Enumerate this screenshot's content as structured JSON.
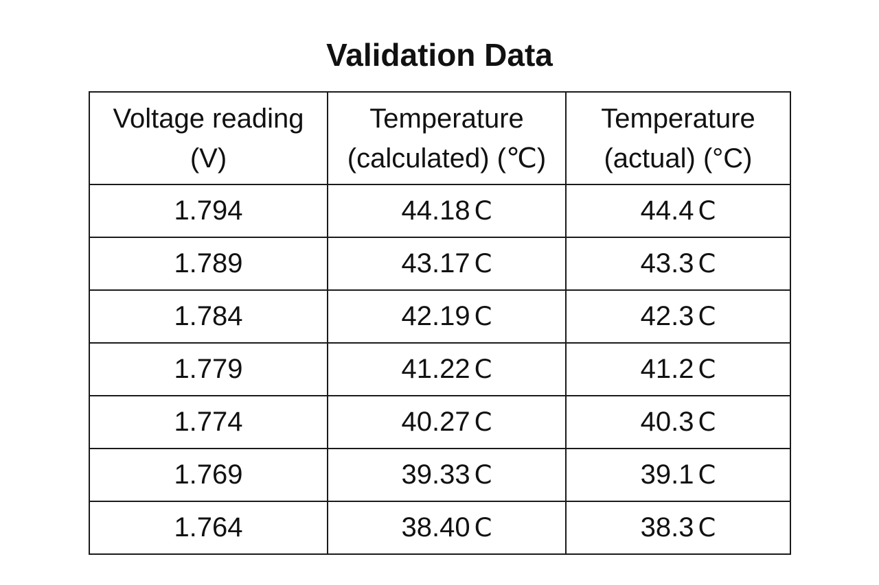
{
  "title": "Validation Data",
  "table": {
    "headers": [
      {
        "line1": "Voltage reading",
        "line2": "(V)"
      },
      {
        "line1": "Temperature",
        "line2": "(calculated) (℃)"
      },
      {
        "line1": "Temperature",
        "line2": "(actual) (°C)"
      }
    ],
    "rows": [
      {
        "voltage": "1.794",
        "calc": "44.18",
        "calc_unit": "C",
        "actual": "44.4",
        "actual_unit": "C"
      },
      {
        "voltage": "1.789",
        "calc": "43.17",
        "calc_unit": "C",
        "actual": "43.3",
        "actual_unit": "C"
      },
      {
        "voltage": "1.784",
        "calc": "42.19",
        "calc_unit": "C",
        "actual": "42.3",
        "actual_unit": "C"
      },
      {
        "voltage": "1.779",
        "calc": "41.22",
        "calc_unit": "C",
        "actual": "41.2",
        "actual_unit": "C"
      },
      {
        "voltage": "1.774",
        "calc": "40.27",
        "calc_unit": "C",
        "actual": "40.3",
        "actual_unit": "C"
      },
      {
        "voltage": "1.769",
        "calc": "39.33",
        "calc_unit": "C",
        "actual": "39.1",
        "actual_unit": "C"
      },
      {
        "voltage": "1.764",
        "calc": "38.40",
        "calc_unit": "C",
        "actual": "38.3",
        "actual_unit": "C"
      }
    ]
  }
}
